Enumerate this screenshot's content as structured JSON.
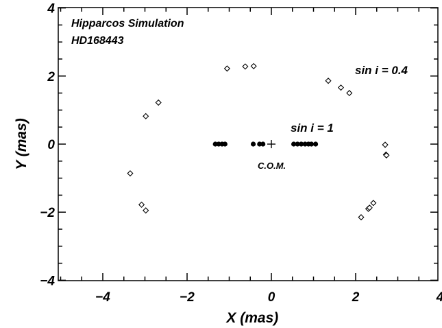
{
  "chart_data": {
    "type": "scatter",
    "title": "",
    "xlabel": "X (mas)",
    "ylabel": "Y (mas)",
    "xlim": [
      -5,
      4
    ],
    "ylim": [
      -4,
      4
    ],
    "x_ticks": [
      -4,
      -2,
      0,
      2,
      4
    ],
    "x_tick_labels": [
      "−4",
      "−2",
      "0",
      "2",
      "4"
    ],
    "y_ticks": [
      -4,
      -2,
      0,
      2,
      4
    ],
    "y_tick_labels": [
      "−4",
      "−2",
      "0",
      "2",
      "4"
    ],
    "grid": false,
    "annotations": [
      {
        "id": "title1",
        "text": "Hipparcos Simulation"
      },
      {
        "id": "title2",
        "text": "HD168443"
      },
      {
        "id": "sin04",
        "text": "sin i  = 0.4"
      },
      {
        "id": "sin1",
        "text": "sin i  = 1"
      },
      {
        "id": "com",
        "text": "C.O.M."
      }
    ],
    "com_marker": {
      "x": 0,
      "y": 0,
      "symbol": "plus"
    },
    "series": [
      {
        "marker": "open-diamond",
        "points": [
          [
            -3.35,
            -0.86
          ],
          [
            -3.08,
            -1.78
          ],
          [
            -2.98,
            -1.95
          ],
          [
            -2.98,
            0.82
          ],
          [
            -2.68,
            1.22
          ],
          [
            -1.05,
            2.22
          ],
          [
            -0.62,
            2.28
          ],
          [
            -0.42,
            2.29
          ],
          [
            1.35,
            1.86
          ],
          [
            1.65,
            1.66
          ],
          [
            1.85,
            1.5
          ],
          [
            2.13,
            -2.15
          ],
          [
            2.3,
            -1.9
          ],
          [
            2.33,
            -1.87
          ],
          [
            2.42,
            -1.73
          ],
          [
            2.7,
            -0.02
          ],
          [
            2.72,
            -0.31
          ],
          [
            2.73,
            -0.33
          ]
        ]
      },
      {
        "marker": "filled-circle",
        "points": [
          [
            -1.33,
            0
          ],
          [
            -1.25,
            0
          ],
          [
            -1.17,
            0
          ],
          [
            -1.1,
            0
          ],
          [
            -0.43,
            0
          ],
          [
            -0.28,
            0
          ],
          [
            -0.2,
            0
          ],
          [
            0.53,
            0
          ],
          [
            0.62,
            0
          ],
          [
            0.71,
            0
          ],
          [
            0.8,
            0
          ],
          [
            0.88,
            0
          ],
          [
            0.95,
            0
          ],
          [
            1.05,
            0
          ]
        ]
      }
    ]
  }
}
